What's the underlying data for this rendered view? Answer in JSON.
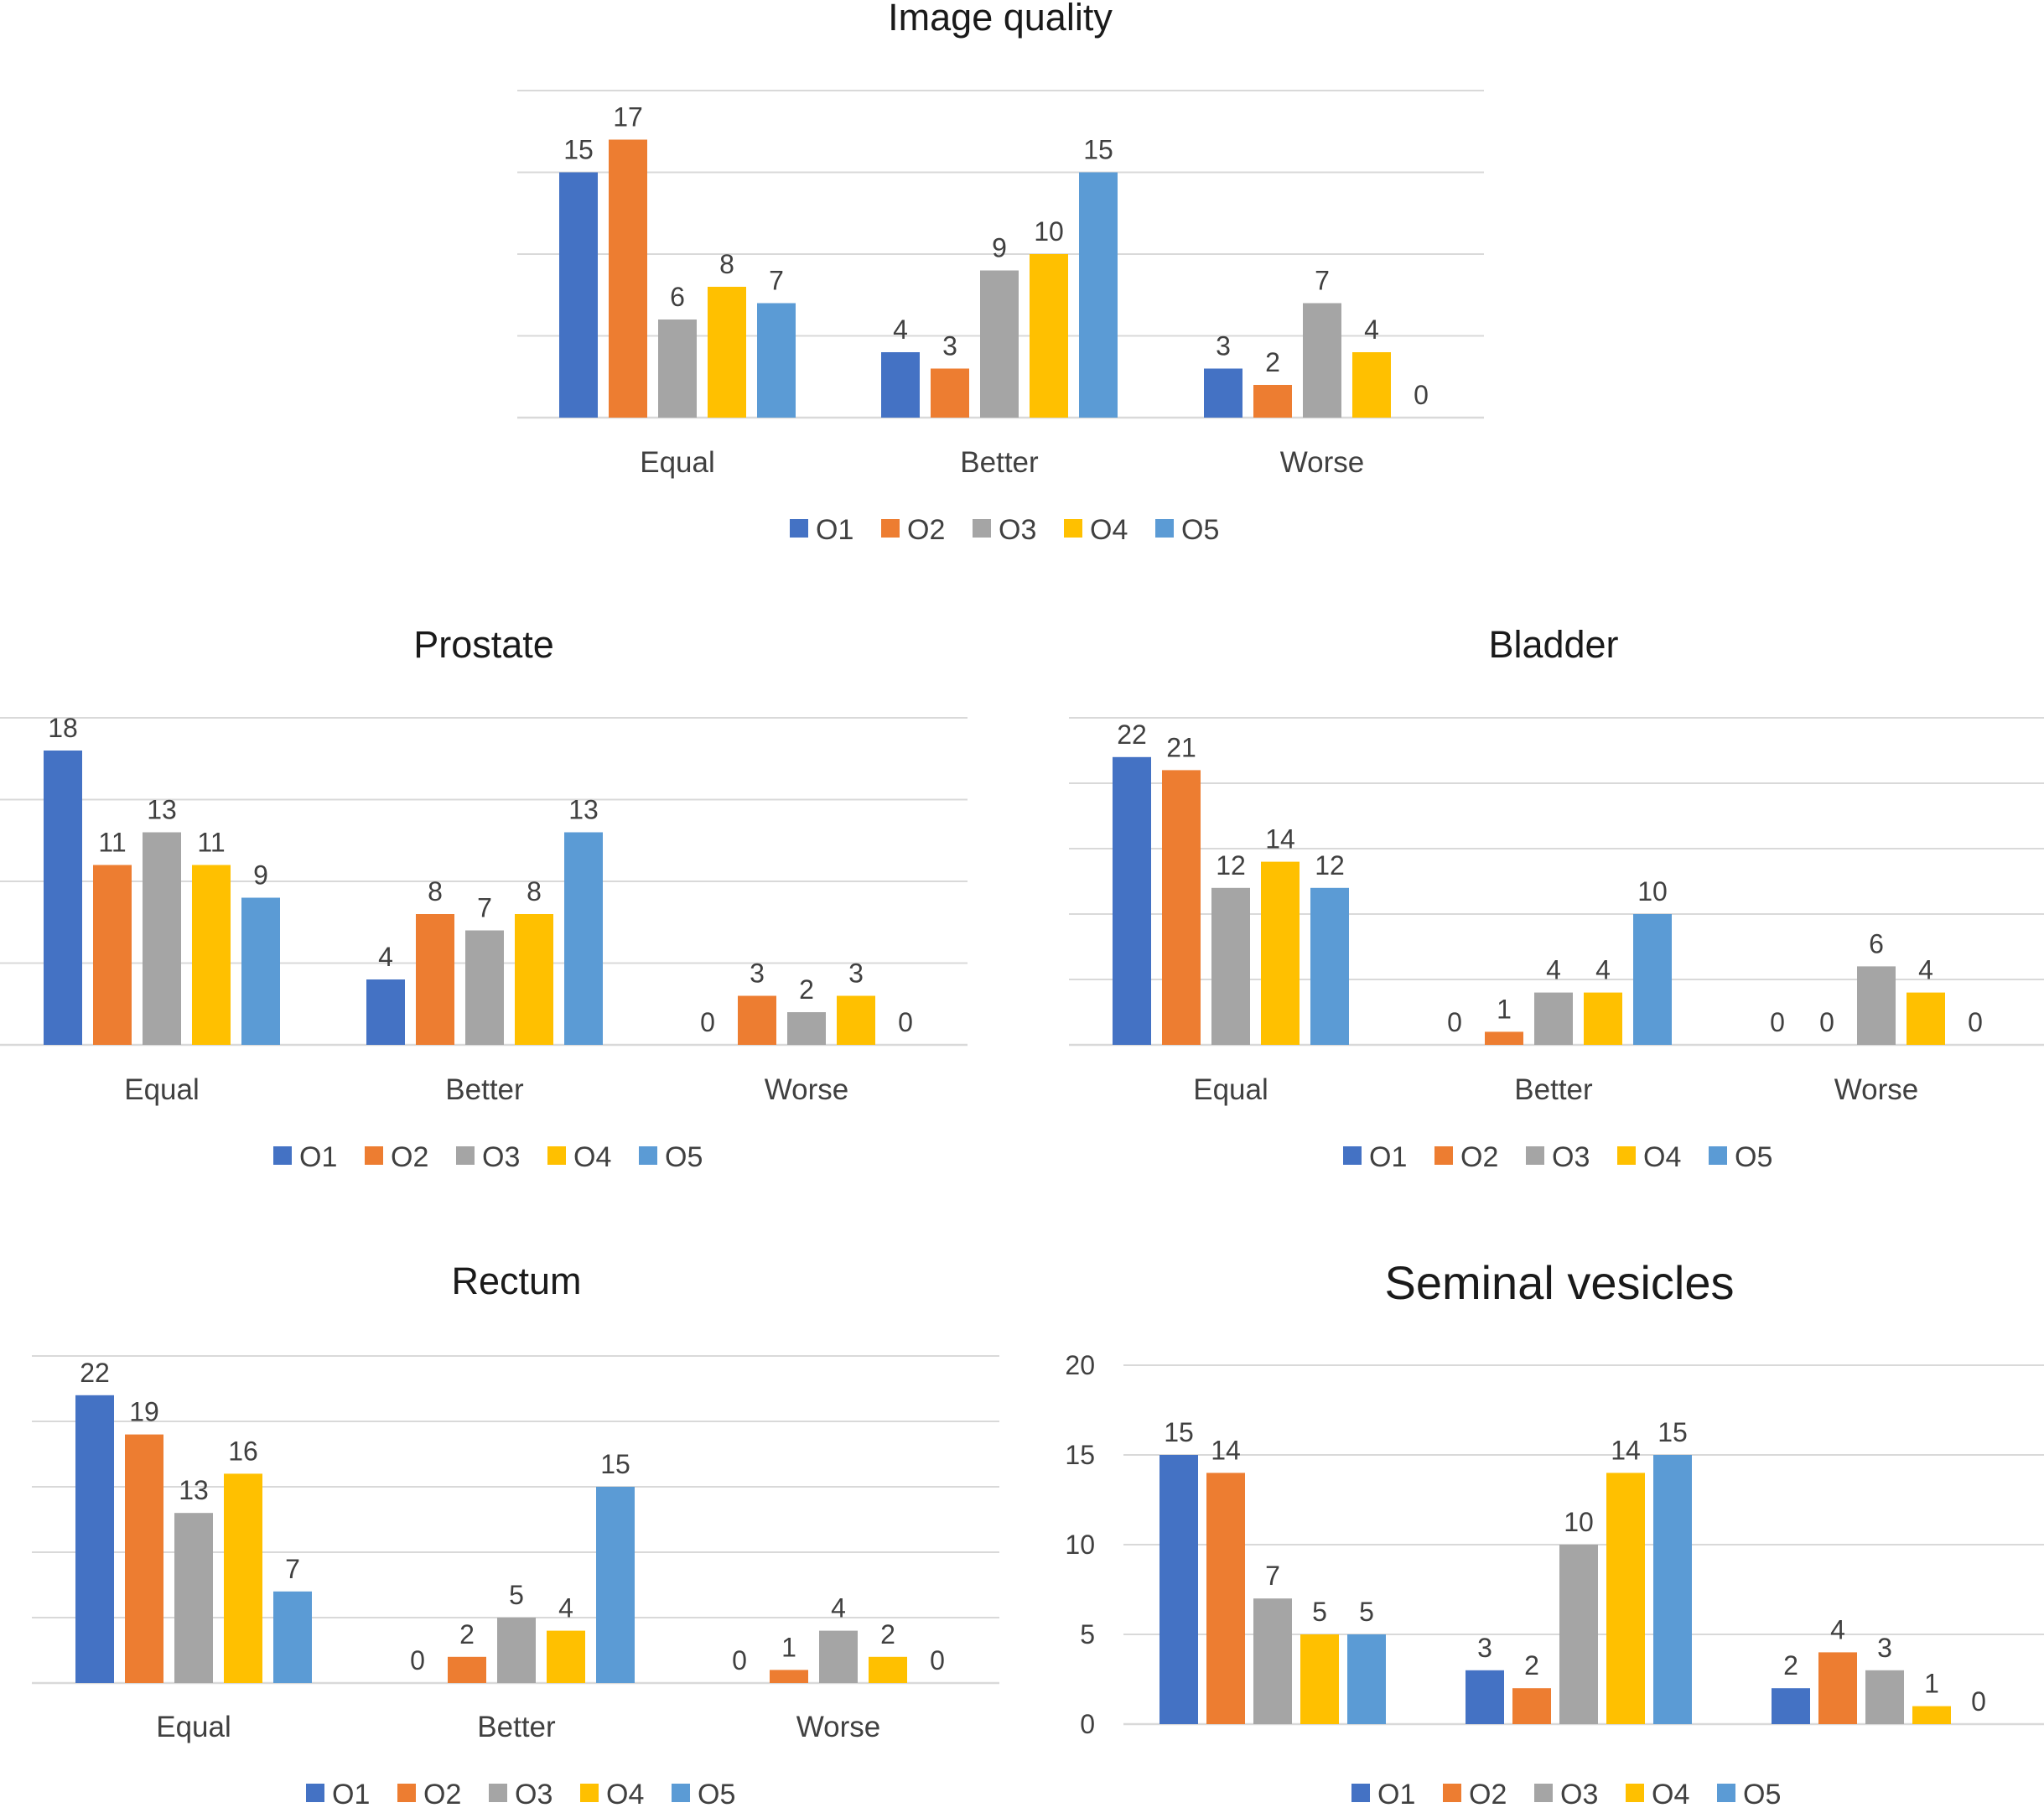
{
  "figure": {
    "series_names": [
      "O1",
      "O2",
      "O3",
      "O4",
      "O5"
    ],
    "series_colors": [
      "#4472C4",
      "#ED7D31",
      "#A5A5A5",
      "#FFC000",
      "#5B9BD5"
    ],
    "gridline_color": "#d9d9d9"
  },
  "chart_data": [
    {
      "type": "bar",
      "title": "Image quality",
      "categories": [
        "Equal",
        "Better",
        "Worse"
      ],
      "series": [
        {
          "name": "O1",
          "values": [
            15,
            4,
            3
          ]
        },
        {
          "name": "O2",
          "values": [
            17,
            3,
            2
          ]
        },
        {
          "name": "O3",
          "values": [
            6,
            9,
            7
          ]
        },
        {
          "name": "O4",
          "values": [
            8,
            10,
            4
          ]
        },
        {
          "name": "O5",
          "values": [
            7,
            15,
            0
          ]
        }
      ],
      "ylim": [
        0,
        20
      ],
      "y_ticks_visible": false,
      "grid": true,
      "legend": "bottom"
    },
    {
      "type": "bar",
      "title": "Prostate",
      "categories": [
        "Equal",
        "Better",
        "Worse"
      ],
      "series": [
        {
          "name": "O1",
          "values": [
            18,
            4,
            0
          ]
        },
        {
          "name": "O2",
          "values": [
            11,
            8,
            3
          ]
        },
        {
          "name": "O3",
          "values": [
            13,
            7,
            2
          ]
        },
        {
          "name": "O4",
          "values": [
            11,
            8,
            3
          ]
        },
        {
          "name": "O5",
          "values": [
            9,
            13,
            0
          ]
        }
      ],
      "ylim": [
        0,
        20
      ],
      "y_ticks_visible": false,
      "grid": true,
      "legend": "bottom"
    },
    {
      "type": "bar",
      "title": "Bladder",
      "categories": [
        "Equal",
        "Better",
        "Worse"
      ],
      "series": [
        {
          "name": "O1",
          "values": [
            22,
            0,
            0
          ]
        },
        {
          "name": "O2",
          "values": [
            21,
            1,
            0
          ]
        },
        {
          "name": "O3",
          "values": [
            12,
            4,
            6
          ]
        },
        {
          "name": "O4",
          "values": [
            14,
            4,
            4
          ]
        },
        {
          "name": "O5",
          "values": [
            12,
            10,
            0
          ]
        }
      ],
      "ylim": [
        0,
        25
      ],
      "y_ticks_visible": false,
      "grid": true,
      "legend": "bottom"
    },
    {
      "type": "bar",
      "title": "Rectum",
      "categories": [
        "Equal",
        "Better",
        "Worse"
      ],
      "series": [
        {
          "name": "O1",
          "values": [
            22,
            0,
            0
          ]
        },
        {
          "name": "O2",
          "values": [
            19,
            2,
            1
          ]
        },
        {
          "name": "O3",
          "values": [
            13,
            5,
            4
          ]
        },
        {
          "name": "O4",
          "values": [
            16,
            4,
            2
          ]
        },
        {
          "name": "O5",
          "values": [
            7,
            15,
            0
          ]
        }
      ],
      "ylim": [
        0,
        25
      ],
      "y_ticks_visible": false,
      "grid": true,
      "legend": "bottom"
    },
    {
      "type": "bar",
      "title": "Seminal vesicles",
      "categories": [
        "",
        "",
        ""
      ],
      "series": [
        {
          "name": "O1",
          "values": [
            15,
            3,
            2
          ]
        },
        {
          "name": "O2",
          "values": [
            14,
            2,
            4
          ]
        },
        {
          "name": "O3",
          "values": [
            7,
            10,
            3
          ]
        },
        {
          "name": "O4",
          "values": [
            5,
            14,
            1
          ]
        },
        {
          "name": "O5",
          "values": [
            5,
            15,
            0
          ]
        }
      ],
      "ylim": [
        0,
        20
      ],
      "y_ticks": [
        "0",
        "5",
        "10",
        "15",
        "20"
      ],
      "y_ticks_visible": true,
      "grid": true,
      "legend": "bottom"
    }
  ]
}
